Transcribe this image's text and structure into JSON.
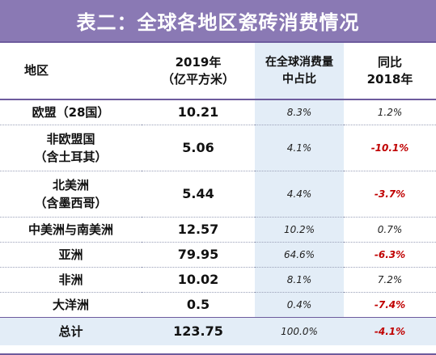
{
  "title": "表二：全球各地区瓷砖消费情况",
  "headers": {
    "region": "地区",
    "value": "2019年\n（亿平方米）",
    "share": "在全球消费量\n中占比",
    "yoy": "同比\n2018年"
  },
  "rows": [
    {
      "region": "欧盟（28国）",
      "value": "10.21",
      "share": "8.3%",
      "yoy": "1.2%",
      "neg": false
    },
    {
      "region": "非欧盟国\n（含土耳其）",
      "value": "5.06",
      "share": "4.1%",
      "yoy": "-10.1%",
      "neg": true
    },
    {
      "region": "北美洲\n（含墨西哥）",
      "value": "5.44",
      "share": "4.4%",
      "yoy": "-3.7%",
      "neg": true
    },
    {
      "region": "中美洲与南美洲",
      "value": "12.57",
      "share": "10.2%",
      "yoy": "0.7%",
      "neg": false
    },
    {
      "region": "亚洲",
      "value": "79.95",
      "share": "64.6%",
      "yoy": "-6.3%",
      "neg": true
    },
    {
      "region": "非洲",
      "value": "10.02",
      "share": "8.1%",
      "yoy": "7.2%",
      "neg": false
    },
    {
      "region": "大洋洲",
      "value": "0.5",
      "share": "0.4%",
      "yoy": "-7.4%",
      "neg": true
    },
    {
      "region": "总计",
      "value": "123.75",
      "share": "100.0%",
      "yoy": "-4.1%",
      "neg": true
    }
  ],
  "colors": {
    "title_bg": "#8a79b4",
    "accent_line": "#6d5b9d",
    "share_column_bg": "#e3edf7",
    "negative": "#c00000"
  }
}
